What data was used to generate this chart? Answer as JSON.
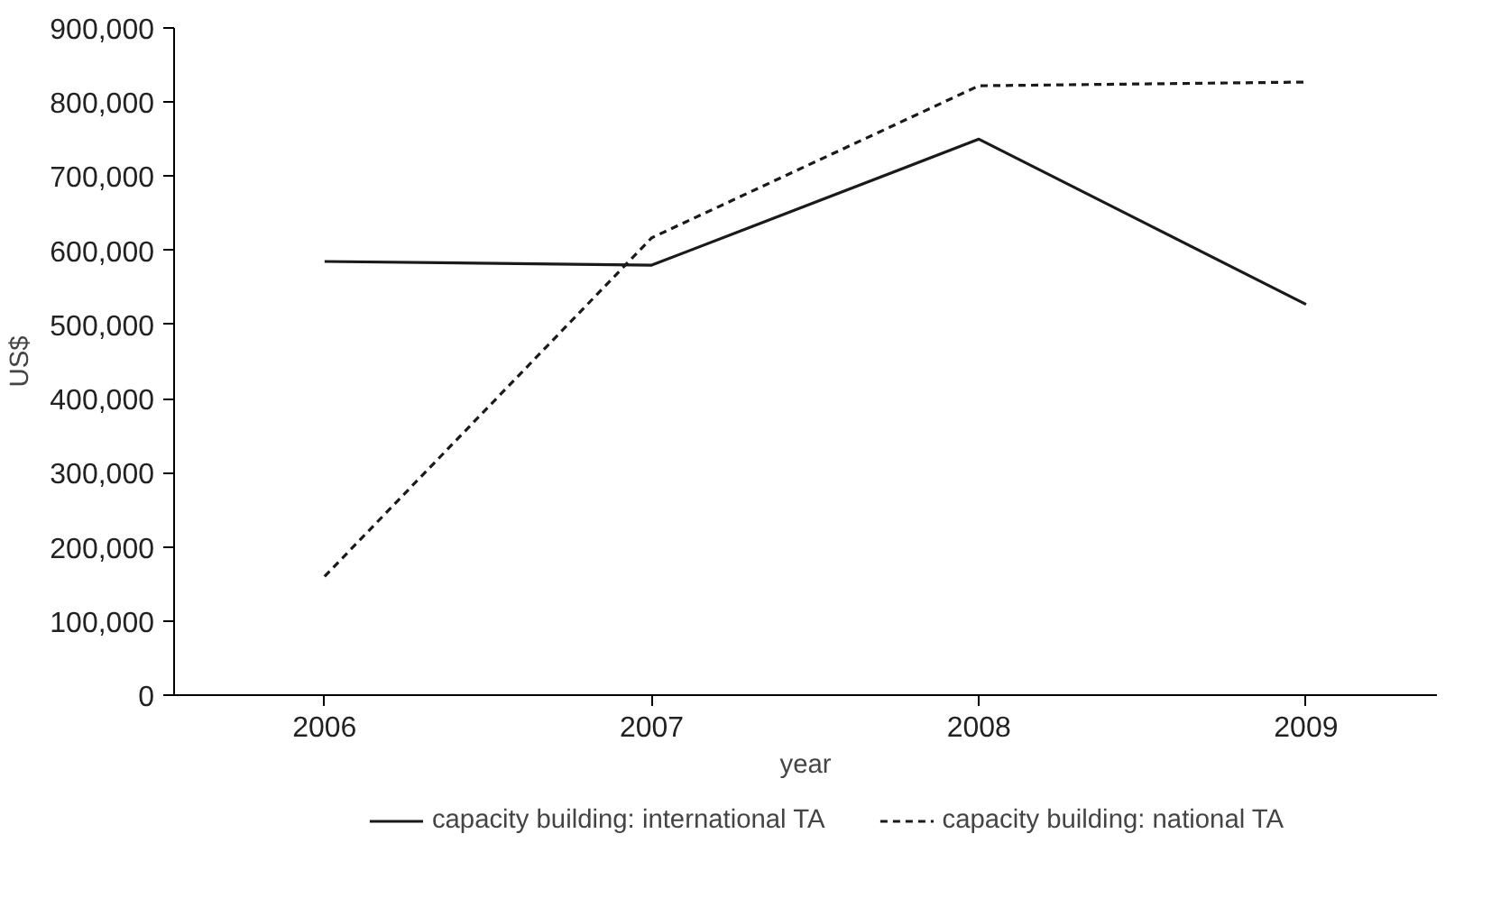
{
  "chart_data": {
    "type": "line",
    "xlabel": "year",
    "ylabel": "US$",
    "x": [
      2006,
      2007,
      2008,
      2009
    ],
    "xlim": [
      2005.54,
      2009.4
    ],
    "xticks": [
      2006,
      2007,
      2008,
      2009
    ],
    "ylim": [
      0,
      900000
    ],
    "yticks": [
      {
        "value": 0,
        "label": "0"
      },
      {
        "value": 100000,
        "label": "100,000"
      },
      {
        "value": 200000,
        "label": "200,000"
      },
      {
        "value": 300000,
        "label": "300,000"
      },
      {
        "value": 400000,
        "label": "400,000"
      },
      {
        "value": 500000,
        "label": "500,000"
      },
      {
        "value": 600000,
        "label": "600,000"
      },
      {
        "value": 700000,
        "label": "700,000"
      },
      {
        "value": 800000,
        "label": "800,000"
      },
      {
        "value": 900000,
        "label": "900,000"
      }
    ],
    "series": [
      {
        "name": "capacity building: international TA",
        "color": "#1a1a1a",
        "line_style": "solid",
        "values": [
          585000,
          580000,
          750000,
          527000
        ]
      },
      {
        "name": "capacity building: national TA",
        "color": "#1a1a1a",
        "line_style": "dashed",
        "values": [
          160000,
          617000,
          822000,
          827000
        ]
      }
    ],
    "legend": "bottom",
    "grid": false,
    "marker": "none"
  }
}
